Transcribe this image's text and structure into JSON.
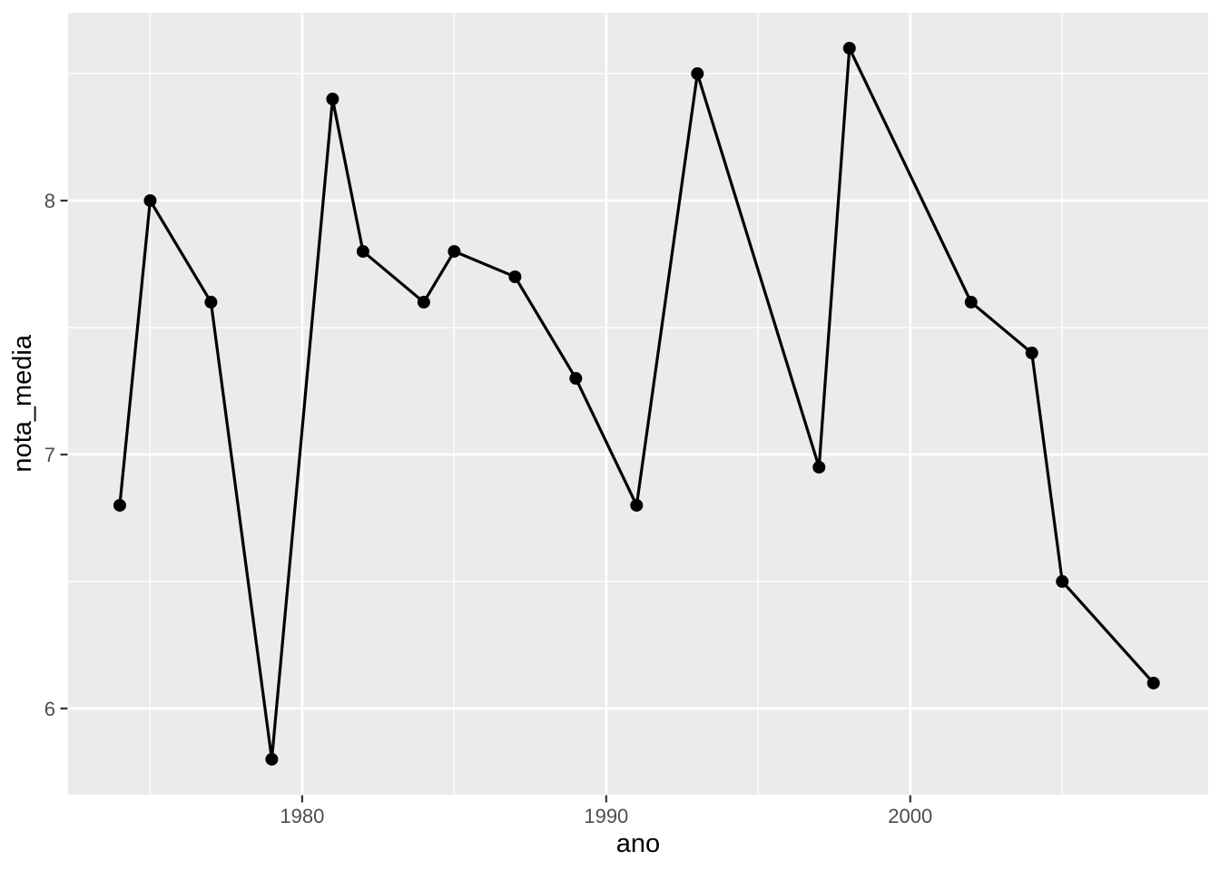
{
  "chart_data": {
    "type": "line",
    "style": "ggplot2",
    "xlabel": "ano",
    "ylabel": "nota_media",
    "x": [
      1974,
      1975,
      1977,
      1979,
      1981,
      1982,
      1984,
      1985,
      1987,
      1989,
      1991,
      1993,
      1997,
      1998,
      2002,
      2004,
      2005,
      2008
    ],
    "y": [
      6.8,
      8.0,
      7.6,
      5.8,
      8.4,
      7.8,
      7.6,
      7.8,
      7.7,
      7.3,
      6.8,
      8.5,
      6.95,
      8.6,
      7.6,
      7.4,
      6.5,
      6.1
    ],
    "marker": "filled-circle",
    "legend": "none",
    "grid": "major-and-minor",
    "xlim": [
      1972.3,
      2009.8
    ],
    "ylim": [
      5.66,
      8.74
    ],
    "x_major_ticks": [
      1980,
      1990,
      2000
    ],
    "x_major_tick_labels": [
      "1980",
      "1990",
      "2000"
    ],
    "x_minor_ticks": [
      1975,
      1985,
      1995,
      2005
    ],
    "y_major_ticks": [
      6,
      7,
      8
    ],
    "y_major_tick_labels": [
      "6",
      "7",
      "8"
    ],
    "y_minor_ticks": [
      6.5,
      7.5,
      8.5
    ],
    "colors": {
      "panel_background": "#EBEBEB",
      "grid_major": "#FFFFFF",
      "grid_minor": "#FFFFFF",
      "line": "#000000",
      "point": "#000000",
      "tick_mark": "#333333",
      "tick_label": "#4D4D4D",
      "axis_title": "#000000",
      "figure_background": "#FFFFFF"
    }
  }
}
